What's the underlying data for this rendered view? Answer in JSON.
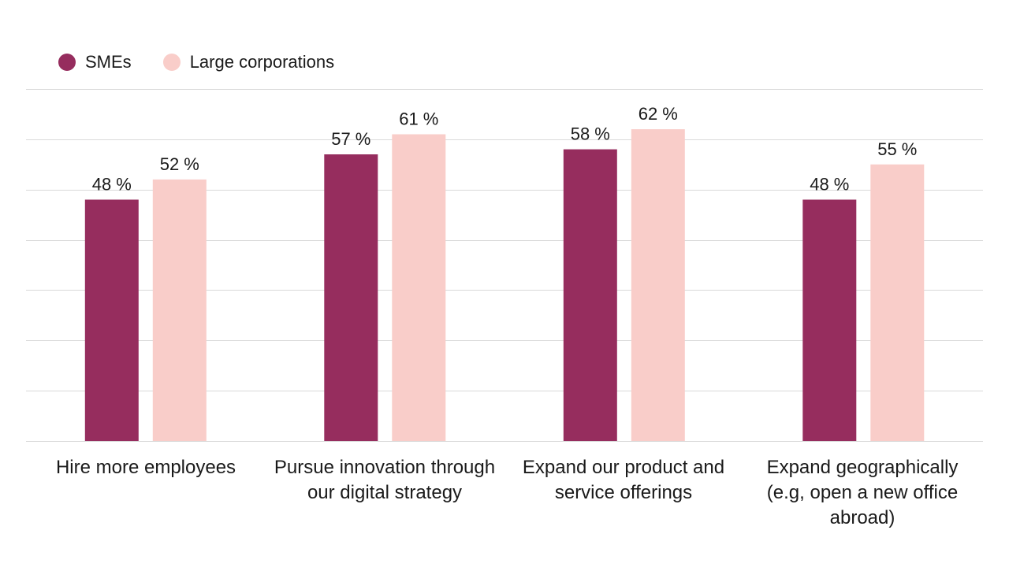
{
  "chart_data": {
    "type": "bar",
    "title": "",
    "xlabel": "",
    "ylabel": "",
    "ylim": [
      0,
      70
    ],
    "grid": true,
    "legend_position": "top-left",
    "value_suffix": " %",
    "categories": [
      [
        "Hire more employees"
      ],
      [
        "Pursue innovation through",
        "our digital strategy"
      ],
      [
        "Expand our product and",
        "service offerings"
      ],
      [
        "Expand geographically",
        "(e.g, open a new office",
        "abroad)"
      ]
    ],
    "series": [
      {
        "name": "SMEs",
        "color": "#962d5e",
        "values": [
          48,
          57,
          58,
          48
        ]
      },
      {
        "name": "Large corporations",
        "color": "#f9cdc9",
        "values": [
          52,
          61,
          62,
          55
        ]
      }
    ]
  }
}
